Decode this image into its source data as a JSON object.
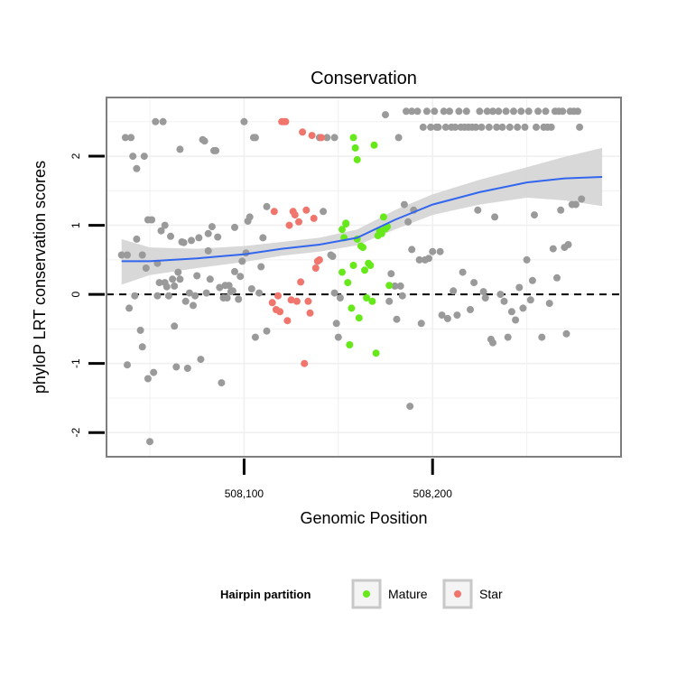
{
  "chart_data": {
    "type": "scatter",
    "title": "Conservation",
    "xlabel": "Genomic Position",
    "ylabel": "phyloP LRT conservation scores",
    "xlim": [
      508027,
      508300
    ],
    "ylim": [
      -2.35,
      2.85
    ],
    "x_ticks": [
      508100,
      508200
    ],
    "x_tick_labels": [
      "508,100",
      "508,200"
    ],
    "y_ticks": [
      -2,
      -1,
      0,
      1,
      2
    ],
    "y_tick_labels": [
      "-2",
      "-1",
      "0",
      "1",
      "2"
    ],
    "grid": true,
    "reference_line": {
      "y": 0,
      "style": "dashed"
    },
    "legend": {
      "title": "Hairpin partition",
      "position": "bottom",
      "entries": [
        {
          "label": "Mature",
          "color": "#66e81a"
        },
        {
          "label": "Star",
          "color": "#f0766d"
        }
      ]
    },
    "colors": {
      "background": "#7f7f7f",
      "point": "#9a9a9a",
      "smooth_line": "#3366ee",
      "ribbon": "#d4d4d4",
      "panel_border": "#7f7f7f",
      "grid": "#f0f0f0"
    },
    "smooth": {
      "x": [
        508035,
        508050,
        508075,
        508100,
        508120,
        508140,
        508160,
        508180,
        508200,
        508225,
        508250,
        508270,
        508290
      ],
      "y": [
        0.48,
        0.48,
        0.52,
        0.58,
        0.66,
        0.72,
        0.82,
        1.08,
        1.3,
        1.48,
        1.62,
        1.68,
        1.7
      ],
      "lower": [
        0.14,
        0.28,
        0.38,
        0.47,
        0.56,
        0.62,
        0.71,
        0.94,
        1.15,
        1.3,
        1.4,
        1.36,
        1.28
      ],
      "upper": [
        0.8,
        0.68,
        0.66,
        0.7,
        0.76,
        0.82,
        0.94,
        1.22,
        1.45,
        1.66,
        1.84,
        1.99,
        2.12
      ]
    },
    "series": [
      {
        "name": "",
        "values": [
          [
            508035,
            0.57
          ],
          [
            508037,
            2.27
          ],
          [
            508038,
            0.57
          ],
          [
            508038,
            -1.02
          ],
          [
            508039,
            -0.2
          ],
          [
            508040,
            2.27
          ],
          [
            508041,
            2.0
          ],
          [
            508042,
            -0.02
          ],
          [
            508043,
            1.82
          ],
          [
            508043,
            0.8
          ],
          [
            508045,
            -0.52
          ],
          [
            508046,
            -0.76
          ],
          [
            508046,
            0.57
          ],
          [
            508047,
            2.0
          ],
          [
            508048,
            0.38
          ],
          [
            508049,
            -1.22
          ],
          [
            508049,
            1.08
          ],
          [
            508050,
            -2.13
          ],
          [
            508051,
            1.08
          ],
          [
            508052,
            -1.13
          ],
          [
            508053,
            2.5
          ],
          [
            508054,
            0.45
          ],
          [
            508054,
            -0.02
          ],
          [
            508055,
            0.17
          ],
          [
            508056,
            0.92
          ],
          [
            508057,
            2.5
          ],
          [
            508058,
            0.17
          ],
          [
            508058,
            1.0
          ],
          [
            508059,
            0.11
          ],
          [
            508060,
            -0.02
          ],
          [
            508061,
            0.84
          ],
          [
            508062,
            0.22
          ],
          [
            508063,
            0.12
          ],
          [
            508063,
            -0.46
          ],
          [
            508064,
            -1.05
          ],
          [
            508065,
            0.32
          ],
          [
            508066,
            0.22
          ],
          [
            508066,
            2.1
          ],
          [
            508067,
            0.76
          ],
          [
            508068,
            0.75
          ],
          [
            508069,
            -0.1
          ],
          [
            508070,
            -1.07
          ],
          [
            508071,
            0.02
          ],
          [
            508072,
            0.78
          ],
          [
            508073,
            -0.16
          ],
          [
            508074,
            -0.02
          ],
          [
            508075,
            0.27
          ],
          [
            508076,
            0.82
          ],
          [
            508077,
            -0.94
          ],
          [
            508078,
            2.24
          ],
          [
            508079,
            2.22
          ],
          [
            508080,
            0.02
          ],
          [
            508081,
            0.63
          ],
          [
            508081,
            0.88
          ],
          [
            508082,
            0.22
          ],
          [
            508083,
            0.98
          ],
          [
            508084,
            2.08
          ],
          [
            508085,
            2.08
          ],
          [
            508086,
            0.83
          ],
          [
            508087,
            0.1
          ],
          [
            508088,
            -1.28
          ],
          [
            508089,
            -0.05
          ],
          [
            508090,
            0.13
          ],
          [
            508091,
            -0.05
          ],
          [
            508092,
            0.13
          ],
          [
            508093,
            0.04
          ],
          [
            508094,
            0.05
          ],
          [
            508095,
            0.33
          ],
          [
            508095,
            0.97
          ],
          [
            508097,
            -0.07
          ],
          [
            508098,
            0.26
          ],
          [
            508099,
            0.48
          ],
          [
            508100,
            2.5
          ],
          [
            508101,
            0.6
          ],
          [
            508102,
            1.06
          ],
          [
            508103,
            1.12
          ],
          [
            508104,
            0.08
          ],
          [
            508105,
            2.27
          ],
          [
            508106,
            -0.62
          ],
          [
            508106,
            2.27
          ],
          [
            508108,
            0.02
          ],
          [
            508109,
            0.4
          ],
          [
            508110,
            0.82
          ],
          [
            508112,
            -0.53
          ],
          [
            508112,
            1.27
          ],
          [
            508140,
            2.27
          ],
          [
            508142,
            1.2
          ],
          [
            508144,
            2.27
          ],
          [
            508146,
            0.57
          ],
          [
            508147,
            0.55
          ],
          [
            508148,
            0.02
          ],
          [
            508148,
            2.27
          ],
          [
            508149,
            -0.42
          ],
          [
            508150,
            -0.62
          ],
          [
            508151,
            -0.05
          ],
          [
            508175,
            2.6
          ],
          [
            508177,
            -0.1
          ],
          [
            508178,
            0.3
          ],
          [
            508180,
            0.12
          ],
          [
            508181,
            -0.36
          ],
          [
            508182,
            2.27
          ],
          [
            508183,
            0.12
          ],
          [
            508184,
            -0.02
          ],
          [
            508185,
            1.3
          ],
          [
            508186,
            2.65
          ],
          [
            508187,
            1.05
          ],
          [
            508188,
            -1.62
          ],
          [
            508189,
            0.65
          ],
          [
            508189,
            2.65
          ],
          [
            508190,
            1.22
          ],
          [
            508192,
            2.65
          ],
          [
            508193,
            0.5
          ],
          [
            508194,
            -0.42
          ],
          [
            508195,
            2.42
          ],
          [
            508196,
            0.5
          ],
          [
            508197,
            2.65
          ],
          [
            508198,
            0.52
          ],
          [
            508199,
            2.42
          ],
          [
            508200,
            0.62
          ],
          [
            508201,
            2.65
          ],
          [
            508202,
            2.42
          ],
          [
            508203,
            2.42
          ],
          [
            508204,
            0.62
          ],
          [
            508205,
            -0.3
          ],
          [
            508206,
            2.65
          ],
          [
            508207,
            2.42
          ],
          [
            508208,
            -0.35
          ],
          [
            508209,
            2.65
          ],
          [
            508210,
            2.42
          ],
          [
            508211,
            0.05
          ],
          [
            508212,
            2.42
          ],
          [
            508213,
            -0.3
          ],
          [
            508214,
            2.65
          ],
          [
            508215,
            2.42
          ],
          [
            508216,
            0.32
          ],
          [
            508217,
            2.42
          ],
          [
            508218,
            2.65
          ],
          [
            508219,
            2.42
          ],
          [
            508220,
            -0.22
          ],
          [
            508221,
            2.42
          ],
          [
            508222,
            0.17
          ],
          [
            508223,
            2.42
          ],
          [
            508224,
            1.22
          ],
          [
            508225,
            2.65
          ],
          [
            508226,
            2.42
          ],
          [
            508227,
            0.04
          ],
          [
            508228,
            -0.05
          ],
          [
            508229,
            2.65
          ],
          [
            508230,
            2.42
          ],
          [
            508231,
            -0.65
          ],
          [
            508232,
            2.65
          ],
          [
            508232,
            -0.7
          ],
          [
            508233,
            1.12
          ],
          [
            508234,
            2.42
          ],
          [
            508235,
            2.65
          ],
          [
            508236,
            0.0
          ],
          [
            508237,
            2.42
          ],
          [
            508238,
            -0.1
          ],
          [
            508239,
            2.65
          ],
          [
            508240,
            -0.62
          ],
          [
            508241,
            2.42
          ],
          [
            508242,
            -0.25
          ],
          [
            508243,
            2.65
          ],
          [
            508244,
            -0.37
          ],
          [
            508245,
            2.42
          ],
          [
            508246,
            0.1
          ],
          [
            508247,
            2.65
          ],
          [
            508248,
            -0.2
          ],
          [
            508249,
            2.42
          ],
          [
            508250,
            0.5
          ],
          [
            508251,
            2.65
          ],
          [
            508252,
            -0.08
          ],
          [
            508253,
            0.2
          ],
          [
            508254,
            1.15
          ],
          [
            508255,
            2.42
          ],
          [
            508256,
            2.65
          ],
          [
            508258,
            -0.62
          ],
          [
            508259,
            2.42
          ],
          [
            508260,
            2.65
          ],
          [
            508261,
            2.42
          ],
          [
            508262,
            -0.13
          ],
          [
            508263,
            2.42
          ],
          [
            508264,
            0.66
          ],
          [
            508265,
            2.65
          ],
          [
            508266,
            0.24
          ],
          [
            508267,
            2.65
          ],
          [
            508268,
            1.22
          ],
          [
            508269,
            2.65
          ],
          [
            508270,
            0.68
          ],
          [
            508271,
            -0.57
          ],
          [
            508272,
            0.72
          ],
          [
            508273,
            2.65
          ],
          [
            508274,
            1.3
          ],
          [
            508275,
            2.65
          ],
          [
            508276,
            1.3
          ],
          [
            508277,
            2.65
          ],
          [
            508278,
            2.42
          ],
          [
            508279,
            1.38
          ]
        ]
      },
      {
        "name": "Mature",
        "values": [
          [
            508152,
            0.32
          ],
          [
            508152,
            0.94
          ],
          [
            508153,
            0.82
          ],
          [
            508154,
            1.02
          ],
          [
            508154,
            1.03
          ],
          [
            508155,
            0.17
          ],
          [
            508156,
            -0.73
          ],
          [
            508157,
            -0.2
          ],
          [
            508158,
            2.27
          ],
          [
            508158,
            0.42
          ],
          [
            508159,
            2.12
          ],
          [
            508160,
            0.8
          ],
          [
            508160,
            1.95
          ],
          [
            508161,
            -0.34
          ],
          [
            508162,
            0.7
          ],
          [
            508163,
            0.68
          ],
          [
            508164,
            0.35
          ],
          [
            508165,
            -0.05
          ],
          [
            508166,
            0.45
          ],
          [
            508167,
            0.42
          ],
          [
            508168,
            -0.1
          ],
          [
            508169,
            2.16
          ],
          [
            508170,
            -0.85
          ],
          [
            508171,
            0.85
          ],
          [
            508172,
            0.92
          ],
          [
            508173,
            0.88
          ],
          [
            508174,
            1.12
          ],
          [
            508175,
            0.95
          ],
          [
            508176,
            0.98
          ],
          [
            508177,
            0.13
          ]
        ]
      },
      {
        "name": "Star",
        "values": [
          [
            508115,
            -0.12
          ],
          [
            508116,
            1.2
          ],
          [
            508117,
            -0.22
          ],
          [
            508118,
            -0.02
          ],
          [
            508119,
            -0.25
          ],
          [
            508120,
            2.5
          ],
          [
            508121,
            2.5
          ],
          [
            508122,
            2.5
          ],
          [
            508123,
            -0.38
          ],
          [
            508124,
            1.0
          ],
          [
            508125,
            -0.08
          ],
          [
            508126,
            1.2
          ],
          [
            508127,
            1.15
          ],
          [
            508128,
            -0.1
          ],
          [
            508129,
            1.05
          ],
          [
            508130,
            0.18
          ],
          [
            508131,
            2.35
          ],
          [
            508132,
            -1.0
          ],
          [
            508133,
            1.22
          ],
          [
            508134,
            -0.1
          ],
          [
            508135,
            -0.27
          ],
          [
            508136,
            2.3
          ],
          [
            508137,
            1.1
          ],
          [
            508138,
            0.38
          ],
          [
            508139,
            0.48
          ],
          [
            508140,
            0.5
          ],
          [
            508141,
            2.27
          ]
        ]
      }
    ]
  }
}
